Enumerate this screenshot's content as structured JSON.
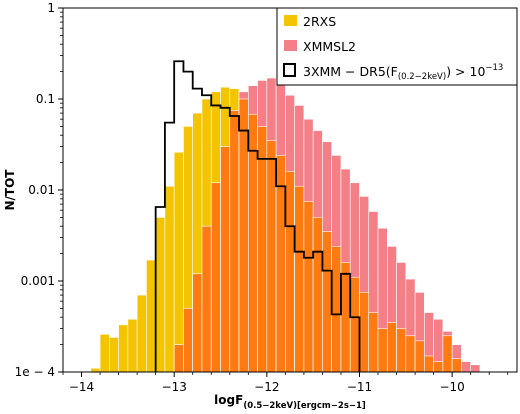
{
  "chart_data": {
    "type": "bar",
    "subtype": "histogram",
    "y_scale": "log",
    "xlim": [
      -14.2,
      -9.3
    ],
    "ylim": [
      0.0001,
      1
    ],
    "grid": false,
    "legend_position": "top-right",
    "xlabel_main": "logF",
    "xlabel_sub": "(0.5−2keV)[ergcm−2s−1]",
    "ylabel": "N/TOT",
    "x_ticks": [
      -14,
      -13,
      -12,
      -11,
      -10
    ],
    "x_tick_labels": [
      "−14",
      "−13",
      "−12",
      "−11",
      "−10"
    ],
    "y_ticks": [
      1,
      0.1,
      0.01,
      0.001,
      0.0001
    ],
    "y_tick_labels": [
      "1",
      "0.1",
      "0.01",
      "0.001",
      "1e − 4"
    ],
    "bin_width": 0.1,
    "colors": {
      "rxs": "#f5c400",
      "xmmsl2": "#f57f87",
      "overlap": "#ff7a10",
      "dr5": "#000000"
    },
    "series": [
      {
        "name": "2RXS",
        "kind": "filled",
        "bins": [
          [
            -13.95,
            5e-05
          ],
          [
            -13.85,
            0.00011
          ],
          [
            -13.75,
            0.00026
          ],
          [
            -13.65,
            0.00024
          ],
          [
            -13.55,
            0.00033
          ],
          [
            -13.45,
            0.00038
          ],
          [
            -13.35,
            0.0007
          ],
          [
            -13.25,
            0.0017
          ],
          [
            -13.15,
            0.005
          ],
          [
            -13.05,
            0.011
          ],
          [
            -12.95,
            0.026
          ],
          [
            -12.85,
            0.05
          ],
          [
            -12.75,
            0.07
          ],
          [
            -12.65,
            0.1
          ],
          [
            -12.55,
            0.12
          ],
          [
            -12.45,
            0.135
          ],
          [
            -12.35,
            0.13
          ],
          [
            -12.25,
            0.1
          ],
          [
            -12.15,
            0.068
          ],
          [
            -12.05,
            0.05
          ],
          [
            -11.95,
            0.035
          ],
          [
            -11.85,
            0.024
          ],
          [
            -11.75,
            0.016
          ],
          [
            -11.65,
            0.011
          ],
          [
            -11.55,
            0.0075
          ],
          [
            -11.45,
            0.005
          ],
          [
            -11.35,
            0.0035
          ],
          [
            -11.25,
            0.0024
          ],
          [
            -11.15,
            0.0016
          ],
          [
            -11.05,
            0.0011
          ],
          [
            -10.95,
            0.00075
          ],
          [
            -10.85,
            0.00045
          ],
          [
            -10.75,
            0.0003
          ],
          [
            -10.65,
            0.00035
          ],
          [
            -10.55,
            0.0003
          ],
          [
            -10.45,
            0.00025
          ],
          [
            -10.35,
            0.00022
          ],
          [
            -10.25,
            0.00015
          ],
          [
            -10.15,
            0.00013
          ],
          [
            -10.05,
            0.00025
          ],
          [
            -9.95,
            0.00014
          ],
          [
            -9.85,
            0.0001
          ],
          [
            -9.55,
            0.0001
          ]
        ]
      },
      {
        "name": "XMMSL2",
        "kind": "filled",
        "bins": [
          [
            -13.15,
            5e-05
          ],
          [
            -13.05,
            0.0001
          ],
          [
            -12.95,
            0.0002
          ],
          [
            -12.85,
            0.0005
          ],
          [
            -12.75,
            0.0012
          ],
          [
            -12.65,
            0.004
          ],
          [
            -12.55,
            0.012
          ],
          [
            -12.45,
            0.03
          ],
          [
            -12.35,
            0.075
          ],
          [
            -12.25,
            0.12
          ],
          [
            -12.15,
            0.14
          ],
          [
            -12.05,
            0.16
          ],
          [
            -11.95,
            0.17
          ],
          [
            -11.85,
            0.15
          ],
          [
            -11.75,
            0.11
          ],
          [
            -11.65,
            0.085
          ],
          [
            -11.55,
            0.06
          ],
          [
            -11.45,
            0.045
          ],
          [
            -11.35,
            0.034
          ],
          [
            -11.25,
            0.024
          ],
          [
            -11.15,
            0.017
          ],
          [
            -11.05,
            0.012
          ],
          [
            -10.95,
            0.0085
          ],
          [
            -10.85,
            0.0058
          ],
          [
            -10.75,
            0.0038
          ],
          [
            -10.65,
            0.0024
          ],
          [
            -10.55,
            0.0016
          ],
          [
            -10.45,
            0.00105
          ],
          [
            -10.35,
            0.00075
          ],
          [
            -10.25,
            0.00045
          ],
          [
            -10.15,
            0.00038
          ],
          [
            -10.05,
            0.00028
          ],
          [
            -9.95,
            0.0002
          ],
          [
            -9.85,
            0.00013
          ],
          [
            -9.75,
            0.00012
          ],
          [
            -9.55,
            2e-05
          ]
        ]
      },
      {
        "name": "3XMM − DR5(F(0.2−2keV) > 10−13",
        "kind": "step",
        "bins": [
          [
            -13.15,
            0.0065
          ],
          [
            -13.05,
            0.055
          ],
          [
            -12.95,
            0.26
          ],
          [
            -12.85,
            0.2
          ],
          [
            -12.75,
            0.13
          ],
          [
            -12.65,
            0.11
          ],
          [
            -12.55,
            0.085
          ],
          [
            -12.45,
            0.08
          ],
          [
            -12.35,
            0.065
          ],
          [
            -12.25,
            0.045
          ],
          [
            -12.15,
            0.027
          ],
          [
            -12.05,
            0.022
          ],
          [
            -11.95,
            0.022
          ],
          [
            -11.85,
            0.011
          ],
          [
            -11.75,
            0.004
          ],
          [
            -11.65,
            0.0021
          ],
          [
            -11.55,
            0.0018
          ],
          [
            -11.45,
            0.0021
          ],
          [
            -11.35,
            0.0013
          ],
          [
            -11.25,
            0.00043
          ],
          [
            -11.15,
            0.0012
          ],
          [
            -11.05,
            0.0004
          ]
        ]
      }
    ]
  },
  "legend": {
    "items": [
      {
        "label": "2RXS",
        "color": "#f5c400",
        "style": "filled"
      },
      {
        "label": "XMMSL2",
        "color": "#f57f87",
        "style": "filled"
      },
      {
        "label": "3XMM − DR5(F",
        "label_sub": "(0.2−2keV)",
        "label_tail": ") > 10",
        "label_sup": "−13",
        "color": "#000000",
        "style": "outline"
      }
    ]
  }
}
